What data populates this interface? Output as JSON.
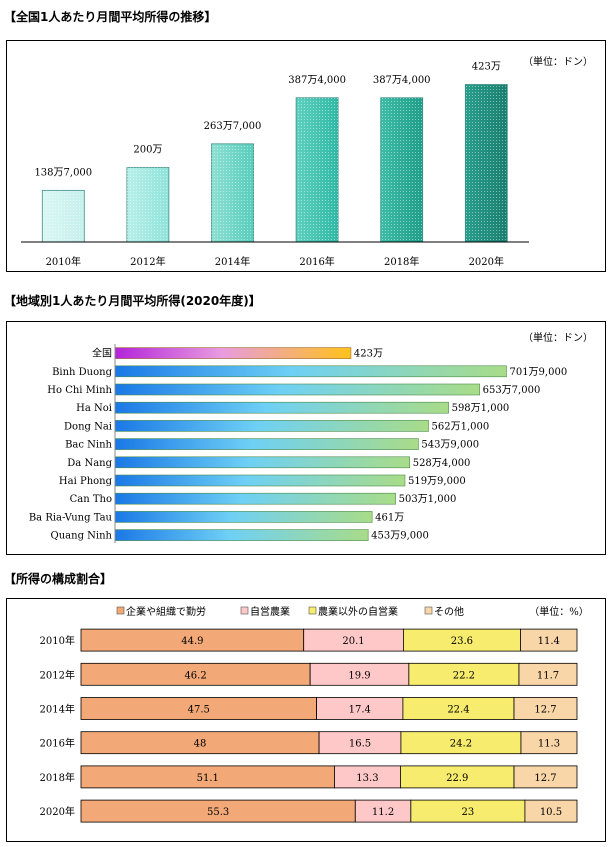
{
  "sections": {
    "trend_title": "【全国1人あたり月間平均所得の推移】",
    "region_title": "【地域別1人あたり月間平均所得(2020年度)】",
    "composition_title": "【所得の構成割合】"
  },
  "chart_data": [
    {
      "type": "bar",
      "unit_label": "（単位：ドン）",
      "categories": [
        "2010年",
        "2012年",
        "2014年",
        "2016年",
        "2018年",
        "2020年"
      ],
      "values": [
        1387000,
        2000000,
        2637000,
        3874000,
        3874000,
        4230000
      ],
      "value_labels": [
        "138万7,000",
        "200万",
        "263万7,000",
        "387万4,000",
        "387万4,000",
        "423万"
      ],
      "ylim": [
        0,
        4700000
      ]
    },
    {
      "type": "bar",
      "orientation": "horizontal",
      "unit_label": "（単位：ドン）",
      "categories": [
        "全国",
        "Binh Duong",
        "Ho Chi Minh",
        "Ha Noi",
        "Dong Nai",
        "Bac Ninh",
        "Da Nang",
        "Hai Phong",
        "Can Tho",
        "Ba Ria-Vung Tau",
        "Quang Ninh"
      ],
      "values": [
        4230000,
        7019000,
        6537000,
        5981000,
        5621000,
        5439000,
        5284000,
        5199000,
        5031000,
        4610000,
        4539000
      ],
      "value_labels": [
        "423万",
        "701万9,000",
        "653万7,000",
        "598万1,000",
        "562万1,000",
        "543万9,000",
        "528万4,000",
        "519万9,000",
        "503万1,000",
        "461万",
        "453万9,000"
      ],
      "xlim": [
        0,
        7100000
      ]
    },
    {
      "type": "bar",
      "orientation": "horizontal",
      "stacked": true,
      "unit_label": "（単位：%）",
      "categories": [
        "2010年",
        "2012年",
        "2014年",
        "2016年",
        "2018年",
        "2020年"
      ],
      "series": [
        {
          "name": "企業や組織で勤労",
          "values": [
            44.9,
            46.2,
            47.5,
            48,
            51.1,
            55.3
          ],
          "labels": [
            "44.9",
            "46.2",
            "47.5",
            "48",
            "51.1",
            "55.3"
          ],
          "color": "#f2a977"
        },
        {
          "name": "自営農業",
          "values": [
            20.1,
            19.9,
            17.4,
            16.5,
            13.3,
            11.2
          ],
          "labels": [
            "20.1",
            "19.9",
            "17.4",
            "16.5",
            "13.3",
            "11.2"
          ],
          "color": "#ffc8c8"
        },
        {
          "name": "農業以外の自営業",
          "values": [
            23.6,
            22.2,
            22.4,
            24.2,
            22.9,
            23
          ],
          "labels": [
            "23.6",
            "22.2",
            "22.4",
            "24.2",
            "22.9",
            "23"
          ],
          "color": "#f7ec6e"
        },
        {
          "name": "その他",
          "values": [
            11.4,
            11.7,
            12.7,
            11.3,
            12.7,
            10.5
          ],
          "labels": [
            "11.4",
            "11.7",
            "12.7",
            "11.3",
            "12.7",
            "10.5"
          ],
          "color": "#f9d6a8"
        }
      ]
    }
  ]
}
